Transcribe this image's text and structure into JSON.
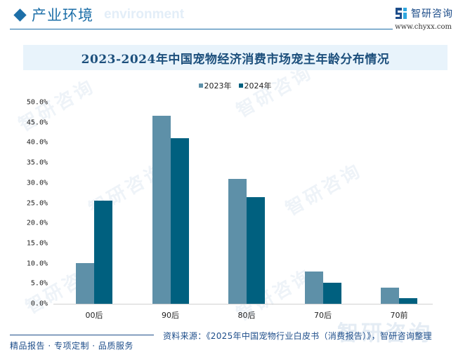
{
  "header": {
    "title_cn": "产业环境",
    "title_en": "environment",
    "brand_name": "智研咨询",
    "brand_url": "www.chyxx.com"
  },
  "chart": {
    "title": "2023-2024年中国宠物经济消费市场宠主年龄分布情况"
  },
  "chart_data": {
    "type": "bar",
    "title": "2023-2024年中国宠物经济消费市场宠主年龄分布情况",
    "categories": [
      "00后",
      "90后",
      "80后",
      "70后",
      "70前"
    ],
    "series": [
      {
        "name": "2023年",
        "color": "#5e90a8",
        "values": [
          10.1,
          46.7,
          31.0,
          8.0,
          4.0
        ]
      },
      {
        "name": "2024年",
        "color": "#00607f",
        "values": [
          25.6,
          41.1,
          26.5,
          5.2,
          1.4
        ]
      }
    ],
    "xlabel": "",
    "ylabel": "",
    "ylim": [
      0,
      50
    ],
    "yticks": [
      "0.0%",
      "5.0%",
      "10.0%",
      "15.0%",
      "20.0%",
      "25.0%",
      "30.0%",
      "35.0%",
      "40.0%",
      "45.0%",
      "50.0%"
    ],
    "legend_position": "top",
    "grid": false
  },
  "footer": {
    "tagline": "精品报告 · 专项定制 · 品质服务",
    "source": "资料来源：《2025年中国宠物行业白皮书（消费报告）》，智研咨询整理"
  },
  "watermark": "智研咨询"
}
